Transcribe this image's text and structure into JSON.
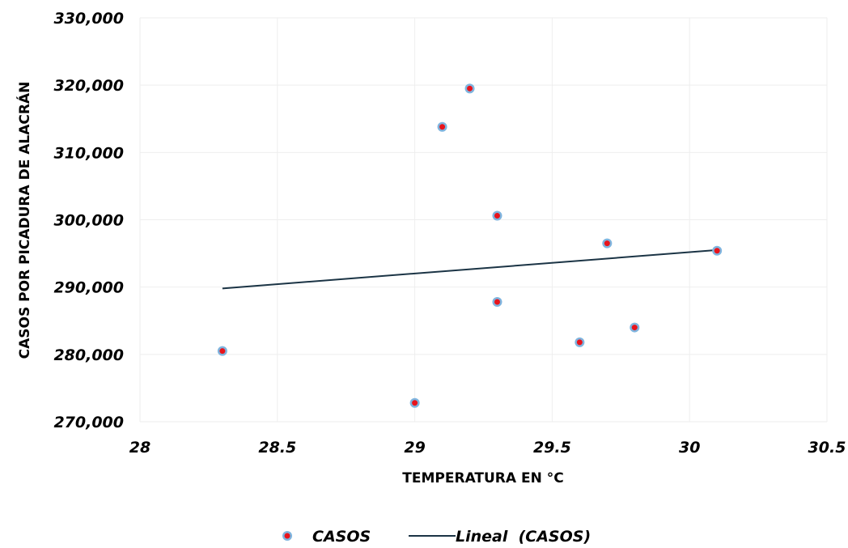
{
  "chart_data": {
    "type": "scatter",
    "xlabel": "TEMPERATURA EN °C",
    "ylabel": "CASOS POR PICADURA DE ALACRÁN",
    "xlim": [
      28,
      30.5
    ],
    "ylim": [
      270000,
      330000
    ],
    "x_ticks": [
      "28",
      "28.5",
      "29",
      "29.5",
      "30",
      "30.5"
    ],
    "y_ticks": [
      "270,000",
      "280,000",
      "290,000",
      "300,000",
      "310,000",
      "320,000",
      "330,000"
    ],
    "x_tick_values": [
      28,
      28.5,
      29,
      29.5,
      30,
      30.5
    ],
    "y_tick_values": [
      270000,
      280000,
      290000,
      300000,
      310000,
      320000,
      330000
    ],
    "grid": true,
    "legend_position": "bottom",
    "series": [
      {
        "name": "CASOS",
        "kind": "scatter",
        "points": [
          {
            "x": 28.3,
            "y": 280500
          },
          {
            "x": 29.0,
            "y": 272800
          },
          {
            "x": 29.1,
            "y": 313800
          },
          {
            "x": 29.2,
            "y": 319500
          },
          {
            "x": 29.3,
            "y": 300600
          },
          {
            "x": 29.3,
            "y": 287800
          },
          {
            "x": 29.6,
            "y": 281800
          },
          {
            "x": 29.7,
            "y": 296500
          },
          {
            "x": 29.8,
            "y": 284000
          },
          {
            "x": 30.1,
            "y": 295400
          }
        ],
        "marker_fill": "#e8141c",
        "marker_ring": "#7fb4de"
      },
      {
        "name": "Lineal  (CASOS)",
        "kind": "trendline",
        "points": [
          {
            "x": 28.3,
            "y": 289800
          },
          {
            "x": 30.1,
            "y": 295500
          }
        ],
        "color": "#1b3445"
      }
    ]
  }
}
